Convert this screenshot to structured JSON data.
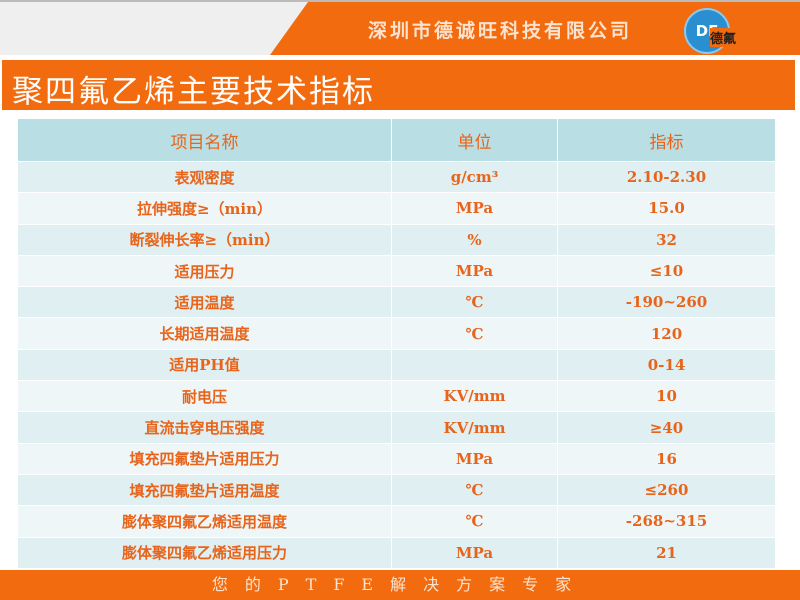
{
  "header": {
    "company": "深圳市德诚旺科技有限公司",
    "logo_text": "德氟",
    "logo_mark": "DF"
  },
  "title": "聚四氟乙烯主要技术指标",
  "table": {
    "headers": [
      "项目名称",
      "单位",
      "指标"
    ],
    "rows": [
      [
        "表观密度",
        "g/cm³",
        "2.10-2.30"
      ],
      [
        "拉伸强度≥（min）",
        "MPa",
        "15.0"
      ],
      [
        "断裂伸长率≥（min）",
        "%",
        "32"
      ],
      [
        "适用压力",
        "MPa",
        "≤10"
      ],
      [
        "适用温度",
        "℃",
        "-190~260"
      ],
      [
        "长期适用温度",
        "℃",
        "120"
      ],
      [
        "适用PH值",
        "",
        "0-14"
      ],
      [
        "耐电压",
        "KV/mm",
        "10"
      ],
      [
        "直流击穿电压强度",
        "KV/mm",
        "≥40"
      ],
      [
        "填充四氟垫片适用压力",
        "MPa",
        "16"
      ],
      [
        "填充四氟垫片适用温度",
        "℃",
        "≤260"
      ],
      [
        "膨体聚四氟乙烯适用温度",
        "℃",
        "-268~315"
      ],
      [
        "膨体聚四氟乙烯适用压力",
        "MPa",
        "21"
      ]
    ]
  },
  "footer": "您的PTFE解决方案专家",
  "colors": {
    "brand": "#f26b0f",
    "header_row": "#b9dfe5",
    "text": "#e8641a"
  }
}
